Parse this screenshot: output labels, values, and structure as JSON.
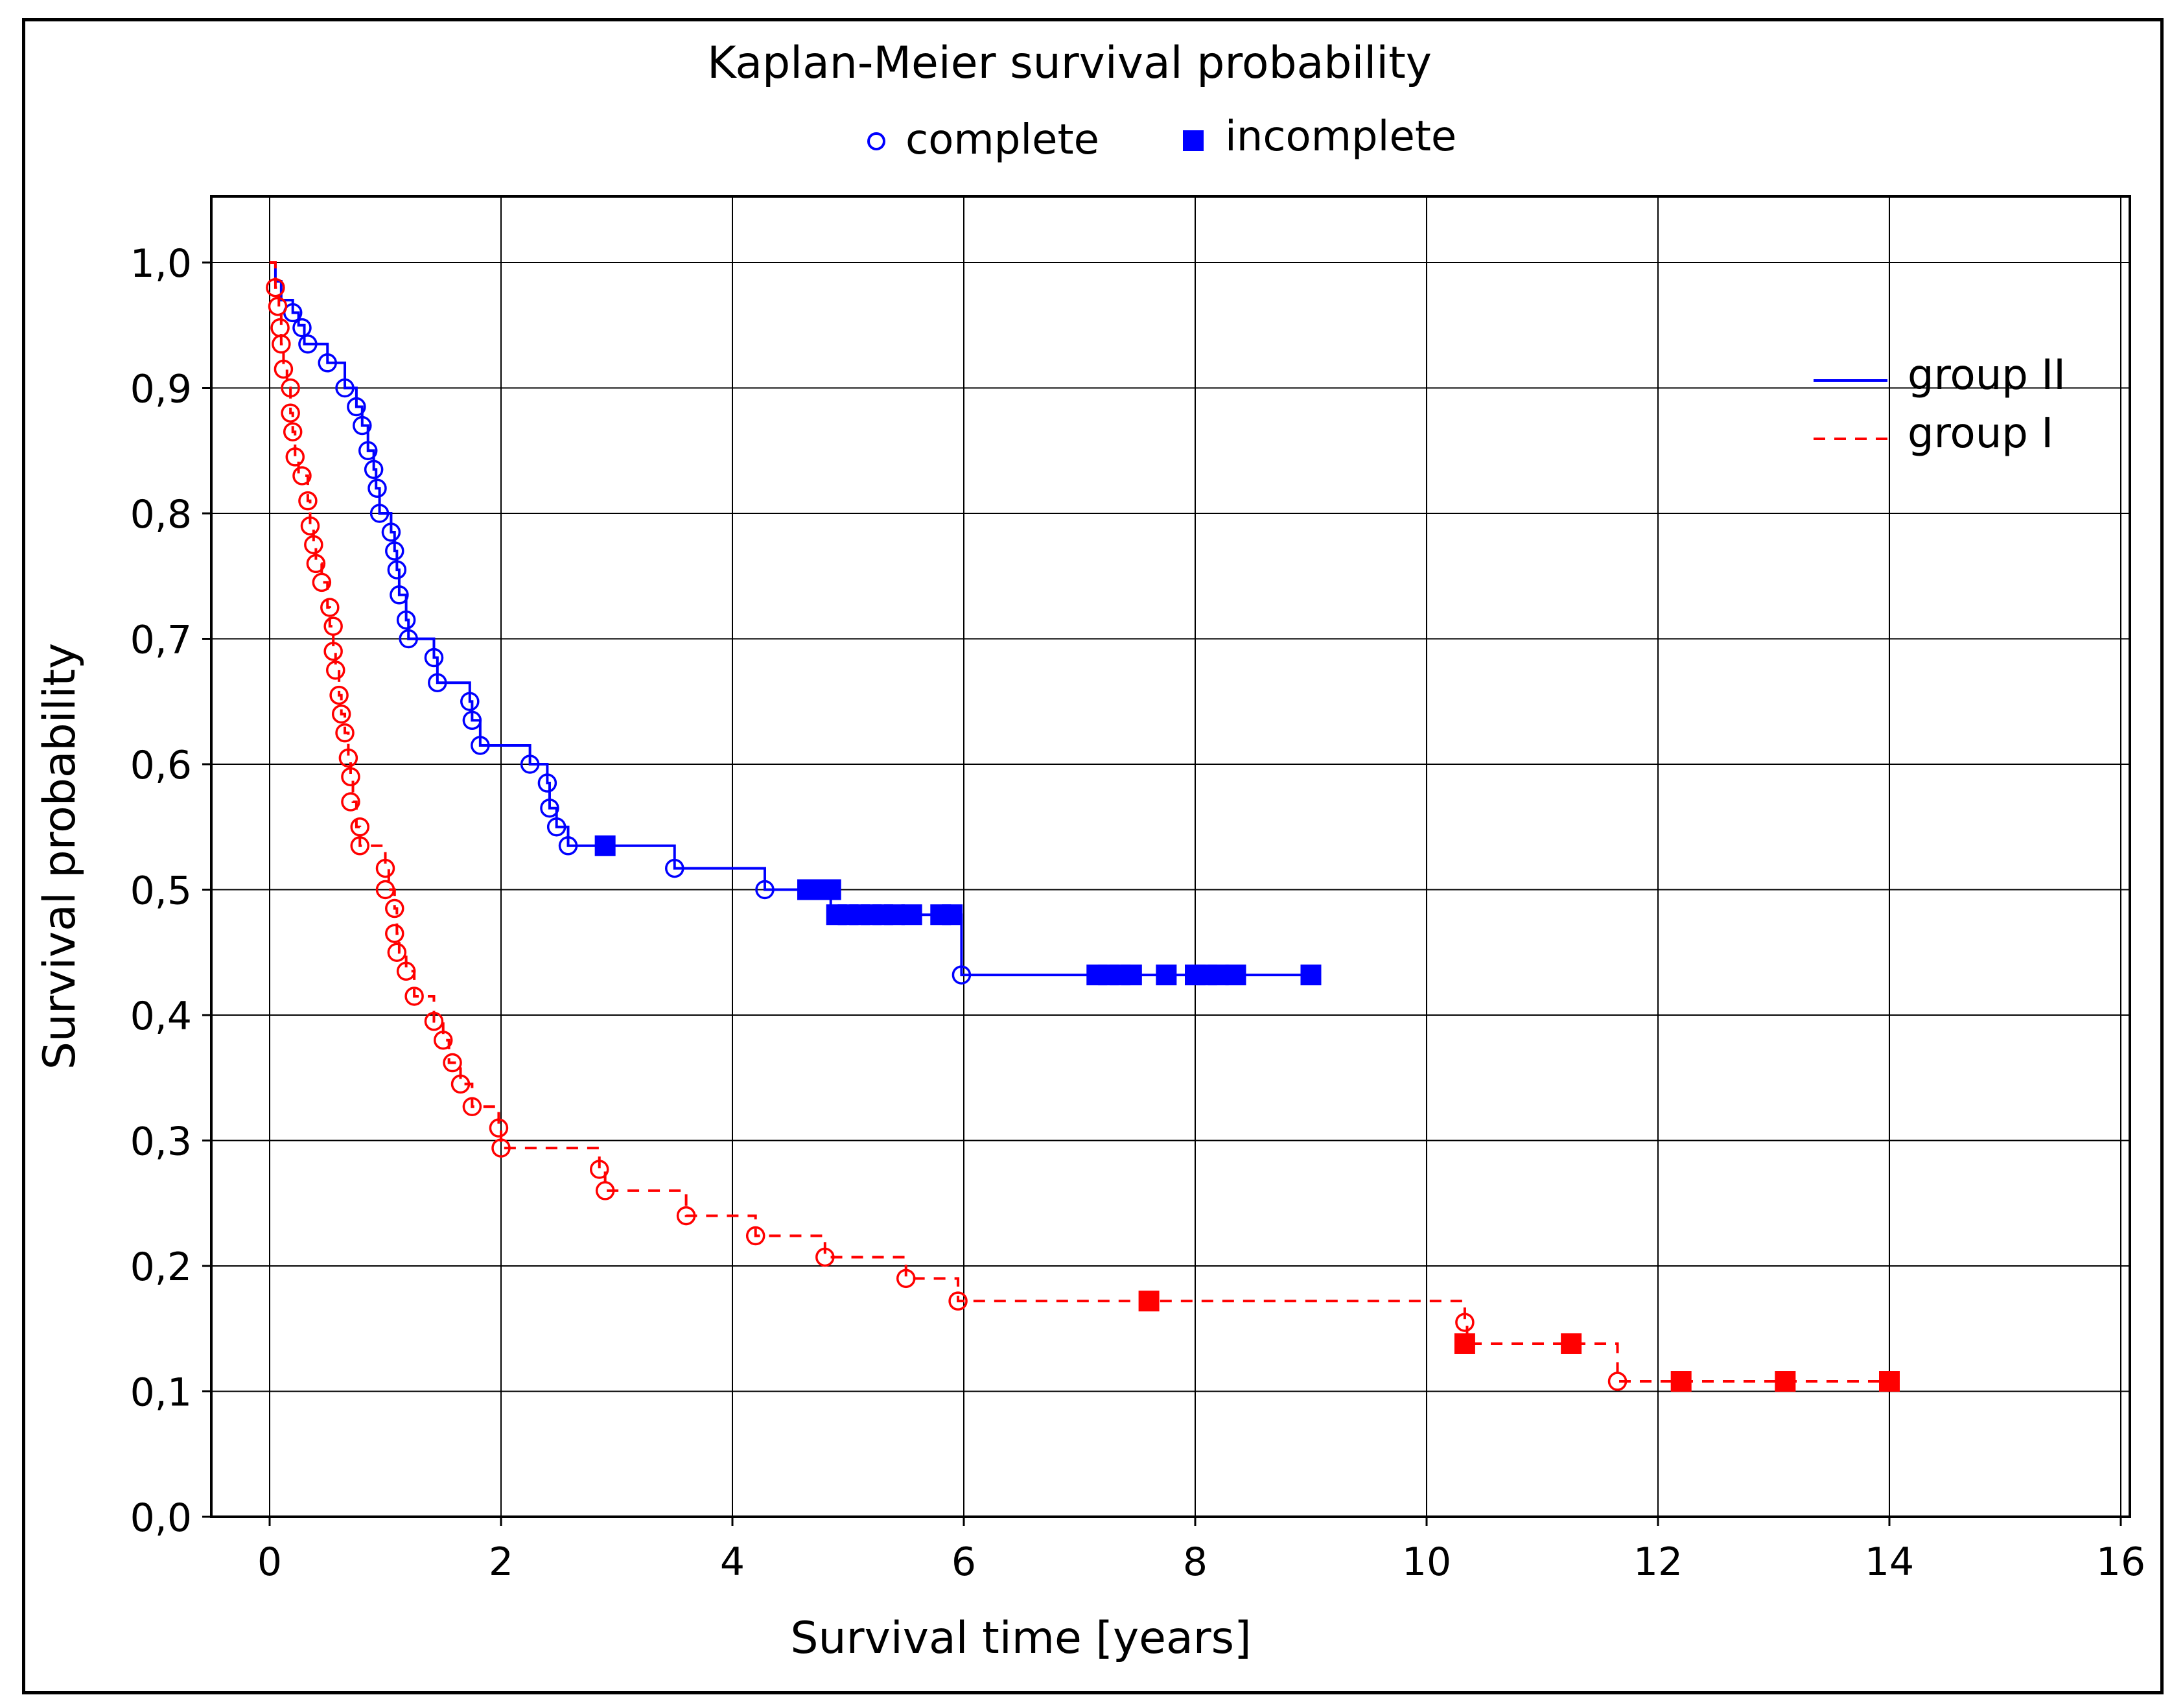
{
  "chart_data": {
    "type": "line",
    "title": "Kaplan-Meier survival probability",
    "xlabel": "Survival time [years]",
    "ylabel": "Survival probability",
    "xlim": [
      -1,
      16
    ],
    "ylim": [
      0.0,
      1.05
    ],
    "xticks": [
      "0",
      "2",
      "4",
      "6",
      "8",
      "10",
      "12",
      "14",
      "16"
    ],
    "yticks": [
      "0,0",
      "0,1",
      "0,2",
      "0,3",
      "0,4",
      "0,5",
      "0,6",
      "0,7",
      "0,8",
      "0,9",
      "1,0"
    ],
    "grid": true,
    "marker_legend": {
      "placement": "top-center",
      "complete_label": "complete",
      "incomplete_label": "incomplete"
    },
    "series_legend": {
      "placement": "top-right"
    },
    "series": [
      {
        "name": "group II",
        "color": "#0000ff",
        "line_style": "solid",
        "steps": [
          [
            0.0,
            1.0
          ],
          [
            0.05,
            0.985
          ],
          [
            0.1,
            0.97
          ],
          [
            0.2,
            0.96
          ],
          [
            0.25,
            0.95
          ],
          [
            0.3,
            0.935
          ],
          [
            0.5,
            0.92
          ],
          [
            0.65,
            0.9
          ],
          [
            0.75,
            0.885
          ],
          [
            0.8,
            0.87
          ],
          [
            0.85,
            0.85
          ],
          [
            0.9,
            0.835
          ],
          [
            0.92,
            0.82
          ],
          [
            0.95,
            0.8
          ],
          [
            1.05,
            0.785
          ],
          [
            1.08,
            0.77
          ],
          [
            1.1,
            0.755
          ],
          [
            1.12,
            0.735
          ],
          [
            1.18,
            0.715
          ],
          [
            1.2,
            0.7
          ],
          [
            1.42,
            0.685
          ],
          [
            1.45,
            0.665
          ],
          [
            1.73,
            0.65
          ],
          [
            1.75,
            0.635
          ],
          [
            1.82,
            0.615
          ],
          [
            2.25,
            0.6
          ],
          [
            2.4,
            0.585
          ],
          [
            2.42,
            0.565
          ],
          [
            2.48,
            0.55
          ],
          [
            2.58,
            0.535
          ],
          [
            3.5,
            0.517
          ],
          [
            4.28,
            0.5
          ],
          [
            4.85,
            0.48
          ],
          [
            5.98,
            0.432
          ],
          [
            9.0,
            0.432
          ]
        ],
        "complete": [
          [
            0.2,
            0.96
          ],
          [
            0.28,
            0.948
          ],
          [
            0.33,
            0.935
          ],
          [
            0.5,
            0.92
          ],
          [
            0.65,
            0.9
          ],
          [
            0.75,
            0.885
          ],
          [
            0.8,
            0.87
          ],
          [
            0.85,
            0.85
          ],
          [
            0.9,
            0.835
          ],
          [
            0.93,
            0.82
          ],
          [
            0.95,
            0.8
          ],
          [
            1.05,
            0.785
          ],
          [
            1.08,
            0.77
          ],
          [
            1.1,
            0.755
          ],
          [
            1.12,
            0.735
          ],
          [
            1.18,
            0.715
          ],
          [
            1.2,
            0.7
          ],
          [
            1.42,
            0.685
          ],
          [
            1.45,
            0.665
          ],
          [
            1.73,
            0.65
          ],
          [
            1.75,
            0.635
          ],
          [
            1.82,
            0.615
          ],
          [
            2.25,
            0.6
          ],
          [
            2.4,
            0.585
          ],
          [
            2.42,
            0.565
          ],
          [
            2.48,
            0.55
          ],
          [
            2.58,
            0.535
          ],
          [
            3.5,
            0.517
          ],
          [
            4.28,
            0.5
          ],
          [
            5.98,
            0.432
          ]
        ],
        "incomplete": [
          [
            2.9,
            0.535
          ],
          [
            4.65,
            0.5
          ],
          [
            4.75,
            0.5
          ],
          [
            4.85,
            0.5
          ],
          [
            4.9,
            0.48
          ],
          [
            5.0,
            0.48
          ],
          [
            5.1,
            0.48
          ],
          [
            5.2,
            0.48
          ],
          [
            5.3,
            0.48
          ],
          [
            5.4,
            0.48
          ],
          [
            5.55,
            0.48
          ],
          [
            5.8,
            0.48
          ],
          [
            5.9,
            0.48
          ],
          [
            7.15,
            0.432
          ],
          [
            7.25,
            0.432
          ],
          [
            7.35,
            0.432
          ],
          [
            7.45,
            0.432
          ],
          [
            7.75,
            0.432
          ],
          [
            8.0,
            0.432
          ],
          [
            8.1,
            0.432
          ],
          [
            8.2,
            0.432
          ],
          [
            8.35,
            0.432
          ],
          [
            9.0,
            0.432
          ]
        ]
      },
      {
        "name": "group I",
        "color": "#ff0000",
        "line_style": "dashed",
        "steps": [
          [
            0.0,
            1.0
          ],
          [
            0.05,
            0.98
          ],
          [
            0.08,
            0.965
          ],
          [
            0.1,
            0.935
          ],
          [
            0.12,
            0.915
          ],
          [
            0.15,
            0.9
          ],
          [
            0.18,
            0.88
          ],
          [
            0.2,
            0.865
          ],
          [
            0.22,
            0.845
          ],
          [
            0.25,
            0.83
          ],
          [
            0.33,
            0.81
          ],
          [
            0.35,
            0.79
          ],
          [
            0.38,
            0.775
          ],
          [
            0.4,
            0.76
          ],
          [
            0.45,
            0.745
          ],
          [
            0.5,
            0.725
          ],
          [
            0.52,
            0.71
          ],
          [
            0.55,
            0.69
          ],
          [
            0.57,
            0.675
          ],
          [
            0.6,
            0.655
          ],
          [
            0.62,
            0.64
          ],
          [
            0.65,
            0.625
          ],
          [
            0.68,
            0.605
          ],
          [
            0.7,
            0.59
          ],
          [
            0.72,
            0.57
          ],
          [
            0.75,
            0.55
          ],
          [
            0.78,
            0.535
          ],
          [
            1.0,
            0.517
          ],
          [
            1.03,
            0.5
          ],
          [
            1.08,
            0.485
          ],
          [
            1.1,
            0.465
          ],
          [
            1.12,
            0.45
          ],
          [
            1.18,
            0.435
          ],
          [
            1.25,
            0.415
          ],
          [
            1.42,
            0.395
          ],
          [
            1.5,
            0.38
          ],
          [
            1.55,
            0.362
          ],
          [
            1.65,
            0.345
          ],
          [
            1.75,
            0.327
          ],
          [
            1.98,
            0.31
          ],
          [
            2.0,
            0.294
          ],
          [
            2.85,
            0.277
          ],
          [
            2.9,
            0.26
          ],
          [
            3.6,
            0.24
          ],
          [
            4.2,
            0.224
          ],
          [
            4.8,
            0.207
          ],
          [
            5.5,
            0.19
          ],
          [
            5.95,
            0.172
          ],
          [
            10.33,
            0.155
          ],
          [
            10.35,
            0.138
          ],
          [
            11.65,
            0.108
          ],
          [
            14.0,
            0.108
          ]
        ],
        "complete": [
          [
            0.05,
            0.98
          ],
          [
            0.07,
            0.965
          ],
          [
            0.09,
            0.948
          ],
          [
            0.1,
            0.935
          ],
          [
            0.12,
            0.915
          ],
          [
            0.18,
            0.9
          ],
          [
            0.18,
            0.88
          ],
          [
            0.2,
            0.865
          ],
          [
            0.22,
            0.845
          ],
          [
            0.28,
            0.83
          ],
          [
            0.33,
            0.81
          ],
          [
            0.35,
            0.79
          ],
          [
            0.38,
            0.775
          ],
          [
            0.4,
            0.76
          ],
          [
            0.45,
            0.745
          ],
          [
            0.52,
            0.725
          ],
          [
            0.55,
            0.71
          ],
          [
            0.55,
            0.69
          ],
          [
            0.57,
            0.675
          ],
          [
            0.6,
            0.655
          ],
          [
            0.62,
            0.64
          ],
          [
            0.65,
            0.625
          ],
          [
            0.68,
            0.605
          ],
          [
            0.7,
            0.59
          ],
          [
            0.7,
            0.57
          ],
          [
            0.78,
            0.55
          ],
          [
            0.78,
            0.535
          ],
          [
            1.0,
            0.517
          ],
          [
            1.0,
            0.5
          ],
          [
            1.08,
            0.485
          ],
          [
            1.08,
            0.465
          ],
          [
            1.1,
            0.45
          ],
          [
            1.18,
            0.435
          ],
          [
            1.25,
            0.415
          ],
          [
            1.42,
            0.395
          ],
          [
            1.5,
            0.38
          ],
          [
            1.58,
            0.362
          ],
          [
            1.65,
            0.345
          ],
          [
            1.75,
            0.327
          ],
          [
            1.98,
            0.31
          ],
          [
            2.0,
            0.294
          ],
          [
            2.85,
            0.277
          ],
          [
            2.9,
            0.26
          ],
          [
            3.6,
            0.24
          ],
          [
            4.2,
            0.224
          ],
          [
            4.8,
            0.207
          ],
          [
            5.5,
            0.19
          ],
          [
            5.95,
            0.172
          ],
          [
            10.33,
            0.155
          ],
          [
            11.65,
            0.108
          ]
        ],
        "incomplete": [
          [
            7.6,
            0.172
          ],
          [
            10.33,
            0.138
          ],
          [
            11.25,
            0.138
          ],
          [
            12.2,
            0.108
          ],
          [
            13.1,
            0.108
          ],
          [
            14.0,
            0.108
          ]
        ]
      }
    ]
  }
}
